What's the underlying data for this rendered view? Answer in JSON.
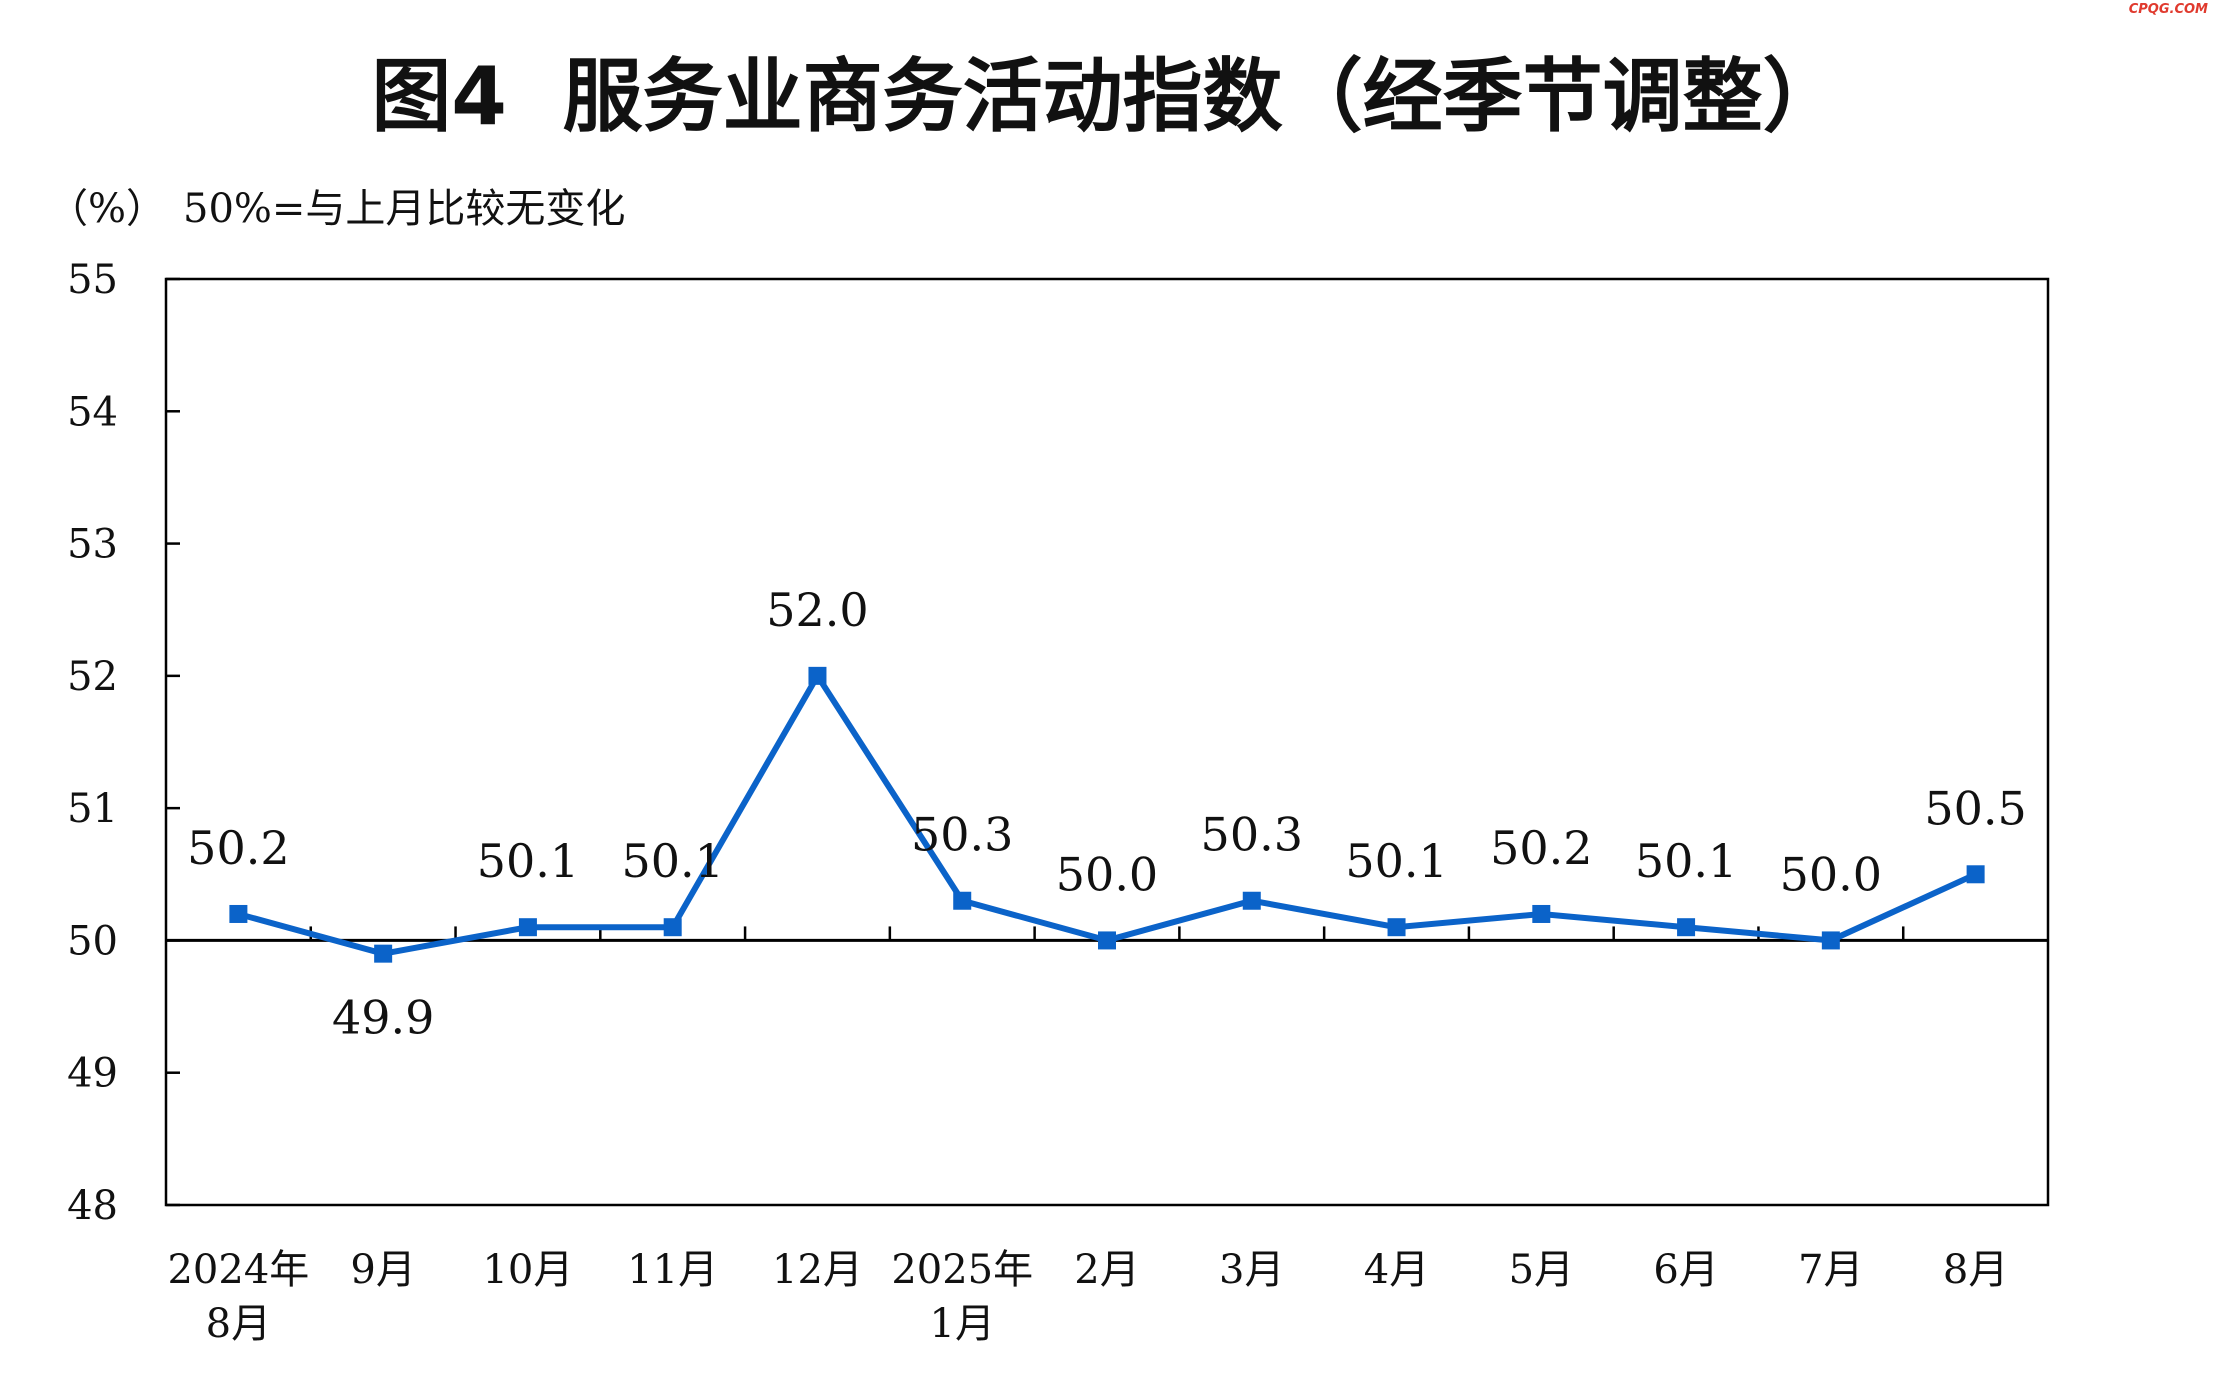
{
  "watermark": "CPQG.COM",
  "chart_data": {
    "type": "line",
    "title": "图4  服务业商务活动指数（经季节调整）",
    "unit_label": "（%）",
    "note": "50%=与上月比较无变化",
    "categories": [
      [
        "2024年",
        "8月"
      ],
      [
        "9月"
      ],
      [
        "10月"
      ],
      [
        "11月"
      ],
      [
        "12月"
      ],
      [
        "2025年",
        "1月"
      ],
      [
        "2月"
      ],
      [
        "3月"
      ],
      [
        "4月"
      ],
      [
        "5月"
      ],
      [
        "6月"
      ],
      [
        "7月"
      ],
      [
        "8月"
      ]
    ],
    "values": [
      50.2,
      49.9,
      50.1,
      50.1,
      52.0,
      50.3,
      50.0,
      50.3,
      50.1,
      50.2,
      50.1,
      50.0,
      50.5
    ],
    "data_labels": [
      "50.2",
      "49.9",
      "50.1",
      "50.1",
      "52.0",
      "50.3",
      "50.0",
      "50.3",
      "50.1",
      "50.2",
      "50.1",
      "50.0",
      "50.5"
    ],
    "ylim": [
      48,
      55
    ],
    "yticks": [
      48,
      49,
      50,
      51,
      52,
      53,
      54,
      55
    ],
    "reference_line": 50,
    "series_color": "#0b63c9",
    "grid": false
  }
}
